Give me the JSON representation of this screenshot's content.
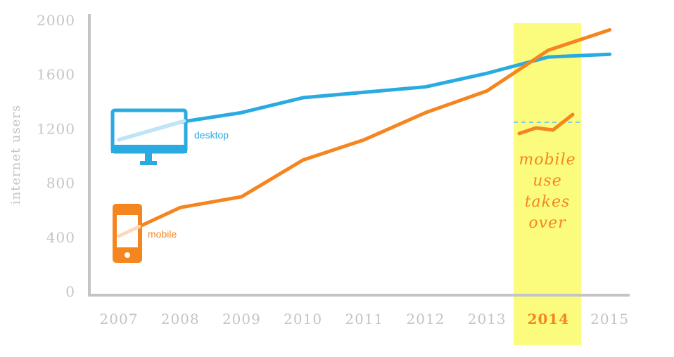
{
  "chart_data": {
    "type": "line",
    "title": "",
    "xlabel": "",
    "ylabel": "internet users",
    "x": [
      "2007",
      "2008",
      "2009",
      "2010",
      "2011",
      "2012",
      "2013",
      "2014",
      "2015"
    ],
    "ylim": [
      0,
      2000
    ],
    "yticks": [
      "0",
      "400",
      "800",
      "1200",
      "1600",
      "2000"
    ],
    "series": [
      {
        "name": "desktop",
        "color": "#29abe2",
        "values": [
          1120,
          1250,
          1320,
          1430,
          1470,
          1510,
          1610,
          1730,
          1750
        ]
      },
      {
        "name": "mobile",
        "color": "#f5851f",
        "values": [
          410,
          620,
          700,
          970,
          1120,
          1320,
          1480,
          1780,
          1930
        ]
      }
    ],
    "highlight": {
      "x": "2014",
      "color": "#fbfc7e",
      "text_lines": [
        "mobile",
        "use",
        "takes",
        "over"
      ]
    },
    "legend": "inline icons",
    "grid": false
  },
  "icons": {
    "desktop": "monitor-icon",
    "mobile": "smartphone-icon"
  }
}
